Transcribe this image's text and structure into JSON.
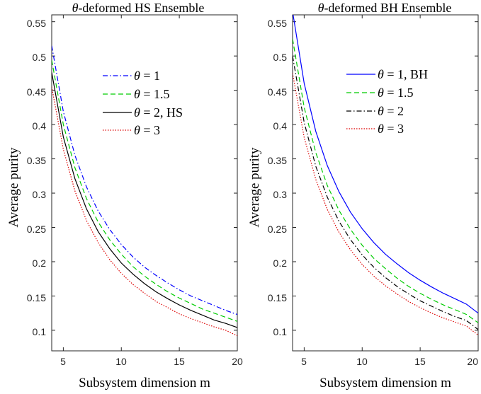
{
  "chart_data": [
    {
      "type": "line",
      "title_symbol": "θ",
      "title_rest": "-deformed HS Ensemble",
      "xlabel": "Subsystem dimension m",
      "ylabel": "Average purity",
      "xlim": [
        4,
        20
      ],
      "ylim": [
        0.07,
        0.56
      ],
      "xticks": [
        "5",
        "10",
        "15",
        "20"
      ],
      "yticks": [
        "0.1",
        "0.15",
        "0.2",
        "0.25",
        "0.3",
        "0.35",
        "0.4",
        "0.45",
        "0.5",
        "0.55"
      ],
      "grid": false,
      "legend_position": "top-right",
      "x": [
        4,
        5,
        6,
        7,
        8,
        9,
        10,
        11,
        12,
        13,
        14,
        15,
        16,
        17,
        18,
        19,
        20
      ],
      "series": [
        {
          "name": "θ = 1",
          "legend_text": " = 1",
          "color": "#0000ff",
          "dash": "dashdot",
          "values": [
            0.515,
            0.419,
            0.355,
            0.309,
            0.274,
            0.247,
            0.225,
            0.207,
            0.192,
            0.18,
            0.169,
            0.159,
            0.15,
            0.143,
            0.136,
            0.129,
            0.123
          ]
        },
        {
          "name": "θ = 1.5",
          "legend_text": " = 1.5",
          "color": "#00cc00",
          "dash": "dashed",
          "values": [
            0.494,
            0.4,
            0.337,
            0.292,
            0.258,
            0.232,
            0.211,
            0.193,
            0.179,
            0.167,
            0.156,
            0.147,
            0.139,
            0.131,
            0.125,
            0.119,
            0.113
          ]
        },
        {
          "name": "θ = 2, HS",
          "legend_text": " = 2, HS",
          "color": "#000000",
          "dash": "solid",
          "values": [
            0.476,
            0.382,
            0.321,
            0.277,
            0.244,
            0.219,
            0.198,
            0.182,
            0.168,
            0.156,
            0.146,
            0.137,
            0.129,
            0.122,
            0.115,
            0.11,
            0.104
          ]
        },
        {
          "name": "θ = 3",
          "legend_text": " = 3",
          "color": "#dd0000",
          "dash": "dotted",
          "values": [
            0.455,
            0.364,
            0.303,
            0.26,
            0.228,
            0.203,
            0.183,
            0.167,
            0.154,
            0.142,
            0.133,
            0.124,
            0.117,
            0.111,
            0.105,
            0.1,
            0.092
          ]
        }
      ]
    },
    {
      "type": "line",
      "title_symbol": "θ",
      "title_rest": "-deformed BH Ensemble",
      "xlabel": "Subsystem dimension m",
      "ylabel": "Average purity",
      "xlim": [
        4,
        20
      ],
      "ylim": [
        0.07,
        0.56
      ],
      "xticks": [
        "5",
        "10",
        "15",
        "20"
      ],
      "yticks": [
        "0.1",
        "0.15",
        "0.2",
        "0.25",
        "0.3",
        "0.35",
        "0.4",
        "0.45",
        "0.5",
        "0.55"
      ],
      "grid": false,
      "legend_position": "top-right",
      "x": [
        4,
        5,
        6,
        7,
        8,
        9,
        10,
        11,
        12,
        13,
        14,
        15,
        16,
        17,
        18,
        19,
        20
      ],
      "series": [
        {
          "name": "θ = 1, BH",
          "legend_text": " = 1, BH",
          "color": "#0000ff",
          "dash": "solid",
          "values": [
            0.565,
            0.46,
            0.39,
            0.34,
            0.302,
            0.272,
            0.248,
            0.228,
            0.211,
            0.197,
            0.184,
            0.173,
            0.163,
            0.154,
            0.146,
            0.138,
            0.125
          ]
        },
        {
          "name": "θ = 1.5",
          "legend_text": " = 1.5",
          "color": "#00cc00",
          "dash": "dashed",
          "values": [
            0.525,
            0.425,
            0.359,
            0.311,
            0.275,
            0.247,
            0.224,
            0.205,
            0.19,
            0.176,
            0.164,
            0.154,
            0.145,
            0.137,
            0.13,
            0.123,
            0.111
          ]
        },
        {
          "name": "θ = 2",
          "legend_text": " = 2",
          "color": "#000000",
          "dash": "dashdot",
          "values": [
            0.5,
            0.403,
            0.339,
            0.294,
            0.259,
            0.232,
            0.21,
            0.192,
            0.177,
            0.164,
            0.153,
            0.143,
            0.135,
            0.127,
            0.12,
            0.114,
            0.101
          ]
        },
        {
          "name": "θ = 3",
          "legend_text": " = 3",
          "color": "#dd0000",
          "dash": "dotted",
          "values": [
            0.475,
            0.381,
            0.32,
            0.276,
            0.243,
            0.217,
            0.196,
            0.179,
            0.165,
            0.153,
            0.142,
            0.133,
            0.125,
            0.118,
            0.112,
            0.106,
            0.093
          ]
        }
      ]
    }
  ]
}
